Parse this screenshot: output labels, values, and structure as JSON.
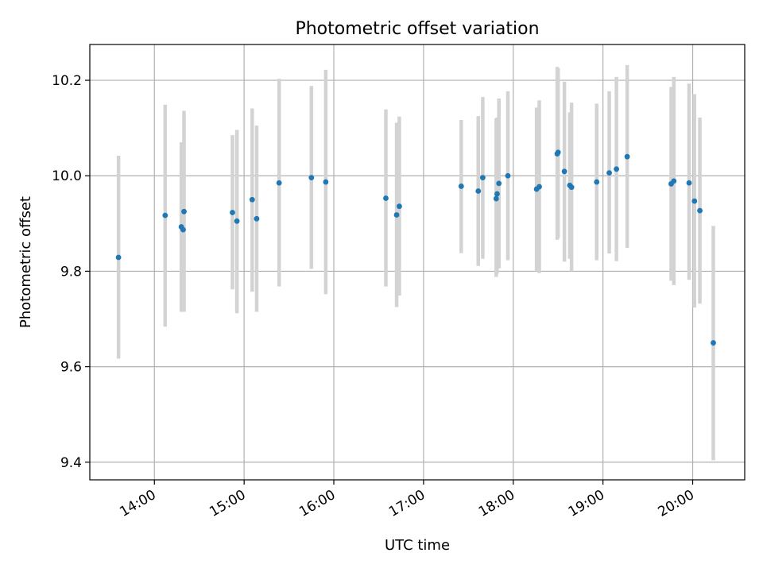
{
  "chart_data": {
    "type": "scatter",
    "title": "Photometric offset variation",
    "xlabel": "UTC time",
    "ylabel": "Photometric offset",
    "x_unit": "hours UTC",
    "xlim": [
      13.28,
      20.58
    ],
    "ylim": [
      9.363,
      10.275
    ],
    "grid": true,
    "x_ticks": [
      {
        "value": 14,
        "label": "14:00"
      },
      {
        "value": 15,
        "label": "15:00"
      },
      {
        "value": 16,
        "label": "16:00"
      },
      {
        "value": 17,
        "label": "17:00"
      },
      {
        "value": 18,
        "label": "18:00"
      },
      {
        "value": 19,
        "label": "19:00"
      },
      {
        "value": 20,
        "label": "20:00"
      }
    ],
    "y_ticks": [
      {
        "value": 9.4,
        "label": "9.4"
      },
      {
        "value": 9.6,
        "label": "9.6"
      },
      {
        "value": 9.8,
        "label": "9.8"
      },
      {
        "value": 10.0,
        "label": "10.0"
      },
      {
        "value": 10.2,
        "label": "10.2"
      }
    ],
    "point_color": "#1f77b4",
    "errorbar_color": "#d3d3d3",
    "points": [
      {
        "x": 13.6,
        "y": 9.829,
        "lo": 9.617,
        "hi": 10.042
      },
      {
        "x": 14.12,
        "y": 9.917,
        "lo": 9.684,
        "hi": 10.149
      },
      {
        "x": 14.3,
        "y": 9.893,
        "lo": 9.715,
        "hi": 10.07
      },
      {
        "x": 14.32,
        "y": 9.887,
        "lo": 9.715,
        "hi": 10.05
      },
      {
        "x": 14.33,
        "y": 9.925,
        "lo": 9.715,
        "hi": 10.136
      },
      {
        "x": 14.87,
        "y": 9.923,
        "lo": 9.762,
        "hi": 10.085
      },
      {
        "x": 14.92,
        "y": 9.905,
        "lo": 9.712,
        "hi": 10.096
      },
      {
        "x": 15.09,
        "y": 9.95,
        "lo": 9.757,
        "hi": 10.141
      },
      {
        "x": 15.14,
        "y": 9.91,
        "lo": 9.715,
        "hi": 10.105
      },
      {
        "x": 15.39,
        "y": 9.985,
        "lo": 9.768,
        "hi": 10.203
      },
      {
        "x": 15.75,
        "y": 9.996,
        "lo": 9.805,
        "hi": 10.188
      },
      {
        "x": 15.91,
        "y": 9.987,
        "lo": 9.752,
        "hi": 10.222
      },
      {
        "x": 16.58,
        "y": 9.953,
        "lo": 9.768,
        "hi": 10.139
      },
      {
        "x": 16.7,
        "y": 9.918,
        "lo": 9.725,
        "hi": 10.111
      },
      {
        "x": 16.73,
        "y": 9.936,
        "lo": 9.749,
        "hi": 10.124
      },
      {
        "x": 17.42,
        "y": 9.978,
        "lo": 9.838,
        "hi": 10.117
      },
      {
        "x": 17.61,
        "y": 9.968,
        "lo": 9.811,
        "hi": 10.125
      },
      {
        "x": 17.66,
        "y": 9.996,
        "lo": 9.826,
        "hi": 10.165
      },
      {
        "x": 17.81,
        "y": 9.952,
        "lo": 9.788,
        "hi": 10.12
      },
      {
        "x": 17.82,
        "y": 9.962,
        "lo": 9.795,
        "hi": 10.122
      },
      {
        "x": 17.84,
        "y": 9.984,
        "lo": 9.806,
        "hi": 10.162
      },
      {
        "x": 17.94,
        "y": 10.0,
        "lo": 9.823,
        "hi": 10.177
      },
      {
        "x": 18.26,
        "y": 9.972,
        "lo": 9.8,
        "hi": 10.143
      },
      {
        "x": 18.29,
        "y": 9.977,
        "lo": 9.796,
        "hi": 10.158
      },
      {
        "x": 18.49,
        "y": 10.046,
        "lo": 9.866,
        "hi": 10.228
      },
      {
        "x": 18.5,
        "y": 10.049,
        "lo": 9.87,
        "hi": 10.225
      },
      {
        "x": 18.57,
        "y": 10.009,
        "lo": 9.82,
        "hi": 10.197
      },
      {
        "x": 18.63,
        "y": 9.98,
        "lo": 9.826,
        "hi": 10.133
      },
      {
        "x": 18.65,
        "y": 9.976,
        "lo": 9.8,
        "hi": 10.153
      },
      {
        "x": 18.93,
        "y": 9.987,
        "lo": 9.823,
        "hi": 10.151
      },
      {
        "x": 19.07,
        "y": 10.006,
        "lo": 9.837,
        "hi": 10.177
      },
      {
        "x": 19.15,
        "y": 10.014,
        "lo": 9.821,
        "hi": 10.207
      },
      {
        "x": 19.27,
        "y": 10.04,
        "lo": 9.849,
        "hi": 10.232
      },
      {
        "x": 19.76,
        "y": 9.983,
        "lo": 9.78,
        "hi": 10.186
      },
      {
        "x": 19.79,
        "y": 9.989,
        "lo": 9.771,
        "hi": 10.207
      },
      {
        "x": 19.96,
        "y": 9.985,
        "lo": 9.782,
        "hi": 10.193
      },
      {
        "x": 20.02,
        "y": 9.947,
        "lo": 9.724,
        "hi": 10.171
      },
      {
        "x": 20.08,
        "y": 9.927,
        "lo": 9.732,
        "hi": 10.122
      },
      {
        "x": 20.23,
        "y": 9.65,
        "lo": 9.404,
        "hi": 9.895
      }
    ]
  }
}
